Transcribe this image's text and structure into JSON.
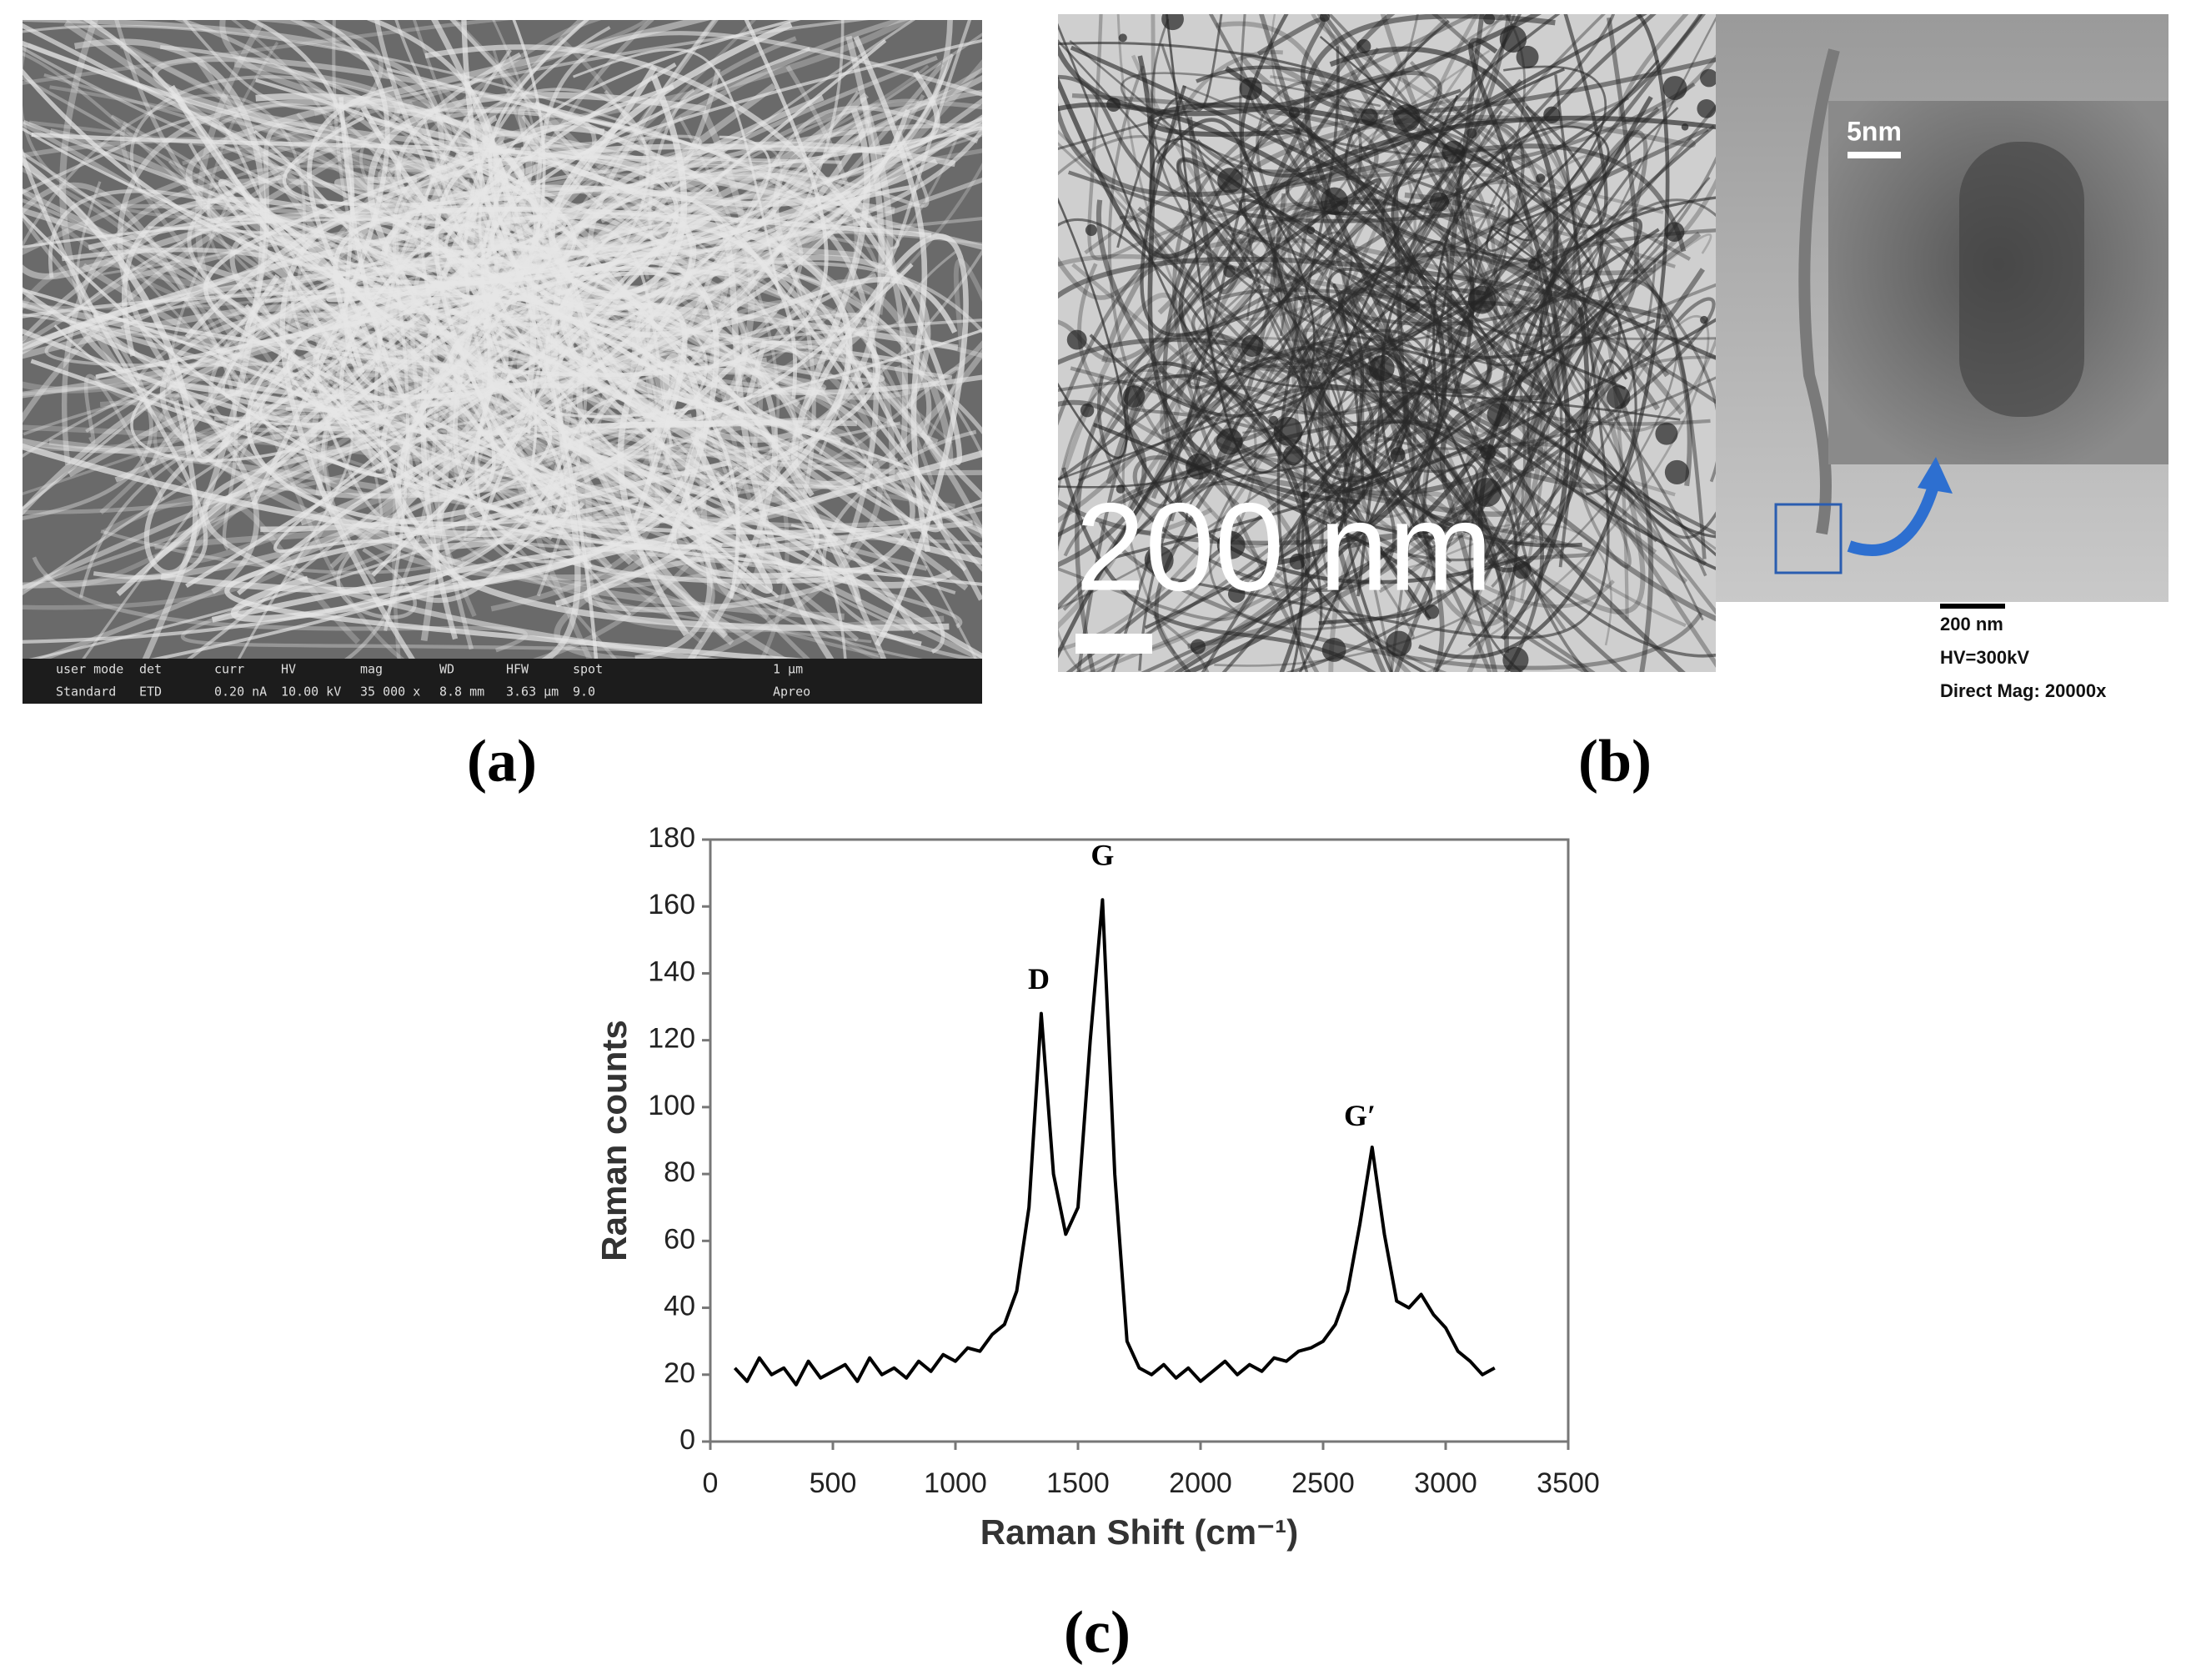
{
  "panels": {
    "a": {
      "label": "(a)",
      "info_header": [
        "user mode",
        "det",
        "curr",
        "HV",
        "mag",
        "WD",
        "HFW",
        "spot",
        "1 μm"
      ],
      "info_values": [
        "Standard",
        "ETD",
        "0.20 nA",
        "10.00 kV",
        "35 000 x",
        "8.8 mm",
        "3.63 μm",
        "9.0",
        "Apreo"
      ]
    },
    "b": {
      "label": "(b)",
      "scale_main": "200 nm",
      "scale_inset": "5nm",
      "info": [
        "200 nm",
        "HV=300kV",
        "Direct Mag: 20000x"
      ]
    },
    "c": {
      "label": "(c)"
    }
  },
  "chart_data": {
    "type": "line",
    "xlabel": "Raman Shift (cm⁻¹)",
    "ylabel": "Raman counts",
    "xlim": [
      0,
      3500
    ],
    "xticks": [
      0,
      500,
      1000,
      1500,
      2000,
      2500,
      3000,
      3500
    ],
    "ylim": [
      0,
      180
    ],
    "yticks": [
      0,
      20,
      40,
      60,
      80,
      100,
      120,
      140,
      160,
      180
    ],
    "x": [
      100,
      150,
      200,
      250,
      300,
      350,
      400,
      450,
      500,
      550,
      600,
      650,
      700,
      750,
      800,
      850,
      900,
      950,
      1000,
      1050,
      1100,
      1150,
      1200,
      1250,
      1300,
      1350,
      1400,
      1450,
      1500,
      1550,
      1600,
      1650,
      1700,
      1750,
      1800,
      1850,
      1900,
      1950,
      2000,
      2050,
      2100,
      2150,
      2200,
      2250,
      2300,
      2350,
      2400,
      2450,
      2500,
      2550,
      2600,
      2650,
      2700,
      2750,
      2800,
      2850,
      2900,
      2950,
      3000,
      3050,
      3100,
      3150,
      3200
    ],
    "series": [
      {
        "color": "#000000",
        "values": [
          22,
          18,
          25,
          20,
          22,
          17,
          24,
          19,
          21,
          23,
          18,
          25,
          20,
          22,
          19,
          24,
          21,
          26,
          24,
          28,
          27,
          32,
          35,
          45,
          70,
          128,
          80,
          62,
          70,
          120,
          162,
          80,
          30,
          22,
          20,
          23,
          19,
          22,
          18,
          21,
          24,
          20,
          23,
          21,
          25,
          24,
          27,
          28,
          30,
          35,
          45,
          65,
          88,
          62,
          42,
          40,
          44,
          38,
          34,
          27,
          24,
          20,
          22
        ]
      }
    ],
    "annotations": [
      {
        "text": "D",
        "x": 1340,
        "y": 133
      },
      {
        "text": "G",
        "x": 1600,
        "y": 170
      },
      {
        "text": "G′",
        "x": 2650,
        "y": 92
      }
    ]
  }
}
